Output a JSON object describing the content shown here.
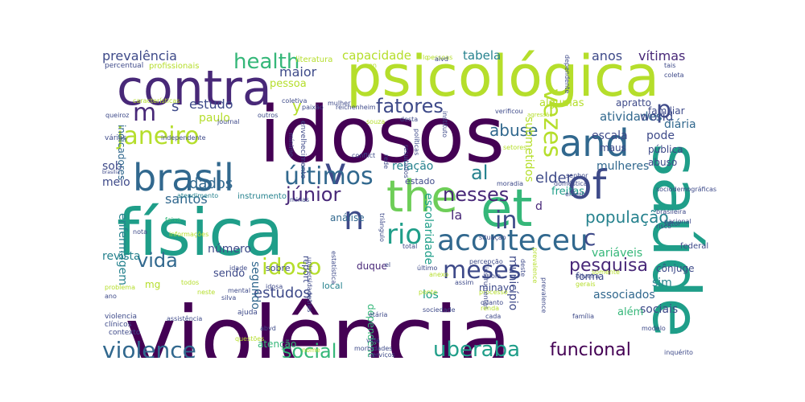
{
  "palette": {
    "c1": "#440154",
    "c2": "#482878",
    "c3": "#3e4a89",
    "c4": "#31688e",
    "c5": "#26828e",
    "c6": "#1f9e89",
    "c7": "#35b779",
    "c8": "#6ece58",
    "c9": "#b5de2b",
    "c10": "#fde725"
  },
  "words": [
    "violência",
    "idosos",
    "saúde",
    "física",
    "psicológica",
    "contra",
    "et",
    "of",
    "brasil",
    "and",
    "the",
    "v",
    "n",
    "aconteceu",
    "últimos",
    "janeiro",
    "meses",
    "in",
    "social",
    "violence",
    "idoso",
    "uberaba",
    "funcional",
    "vida",
    "rio",
    "fatores",
    "nesses",
    "júnior",
    "health",
    "vezes",
    "pesquisa",
    "al",
    "população",
    "estudos",
    "prevalência",
    "m",
    "p",
    "capacidade",
    "tabela",
    "anos",
    "vítimas",
    "abuse",
    "dados",
    "santos",
    "c",
    "s",
    "y",
    "elder",
    "maior",
    "estudo",
    "paulo",
    "relação",
    "pessoa",
    "sob",
    "meio",
    "revista",
    "número",
    "enfermagem",
    "escolaridade",
    "sociais",
    "associados",
    "atividades",
    "escala",
    "pode",
    "world",
    "diária",
    "aprattо",
    "algumas",
    "familiar",
    "maus",
    "pública",
    "abuso",
    "mulheres",
    "submetidos",
    "freitas",
    "sim",
    "cônjuge",
    "forma",
    "variáveis",
    "município",
    "segundo",
    "los",
    "duque",
    "la",
    "minayo",
    "análise",
    "sendo",
    "report",
    "atenção",
    "d",
    "além",
    "estado",
    "local",
    "sobre",
    "mg",
    "dependência",
    "federal",
    "instrumento",
    "ajuda",
    "nacional",
    "indicadores",
    "percentual",
    "profissionais",
    "características",
    "coletiva",
    "paixão",
    "reichenheim",
    "journal",
    "queiroz",
    "outros",
    "mulher",
    "on",
    "literatura",
    "dependente",
    "verificou",
    "agressão",
    "instituto",
    "desta",
    "souza",
    "resultados",
    "envelhecimento",
    "políticas",
    "rede",
    "mínimo",
    "independente",
    "várias",
    "brasília",
    "conflict",
    "moradia",
    "setores",
    "sociodemográficas",
    "brasileira",
    "risco",
    "elderly",
    "doméstica",
    "senhor",
    "triângulo",
    "minas",
    "atendimento",
    "faixa",
    "nota",
    "informações",
    "estatística",
    "universidade",
    "idade",
    "todos",
    "neste",
    "silva",
    "mental",
    "idosa",
    "último",
    "anexo",
    "processo",
    "prevalence",
    "violencia",
    "clínicos",
    "contexto",
    "assistência",
    "abvd",
    "questões",
    "serviços",
    "morbidades",
    "etária",
    "instrumentos",
    "cada",
    "quanto",
    "renda",
    "sociedade",
    "oliveira",
    "gerais",
    "prevalence",
    "família",
    "modelo",
    "inquérito",
    "deste",
    "assim",
    "total",
    "situação",
    "percepção",
    "problema",
    "ano",
    "el",
    "apoio",
    "somente",
    "setor",
    "outras",
    "nome",
    "pessoas",
    "aivd",
    "tais",
    "coleta",
    "vida",
    "lo",
    "ponto"
  ]
}
